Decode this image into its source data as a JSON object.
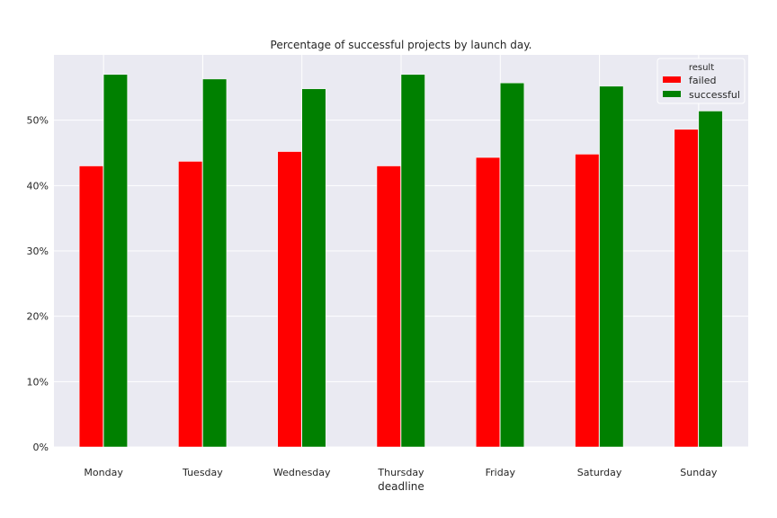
{
  "chart_data": {
    "type": "bar",
    "title": "Percentage of successful projects by launch day.",
    "xlabel": "deadline",
    "ylabel": "",
    "categories": [
      "Monday",
      "Tuesday",
      "Wednesday",
      "Thursday",
      "Friday",
      "Saturday",
      "Sunday"
    ],
    "series": [
      {
        "name": "failed",
        "color": "#ff0000",
        "values": [
          43.0,
          43.7,
          45.2,
          43.0,
          44.3,
          44.8,
          48.6
        ]
      },
      {
        "name": "successful",
        "color": "#008000",
        "values": [
          57.0,
          56.3,
          54.8,
          57.0,
          55.7,
          55.2,
          51.4
        ]
      }
    ],
    "ylim": [
      0,
      60
    ],
    "yticks": [
      0,
      10,
      20,
      30,
      40,
      50
    ],
    "ytick_labels": [
      "0%",
      "10%",
      "20%",
      "30%",
      "40%",
      "50%"
    ],
    "grid": true,
    "legend": {
      "title": "result",
      "placement": "top-right"
    },
    "colors": {
      "plot_background": "#eaeaf2",
      "grid": "#ffffff"
    }
  }
}
